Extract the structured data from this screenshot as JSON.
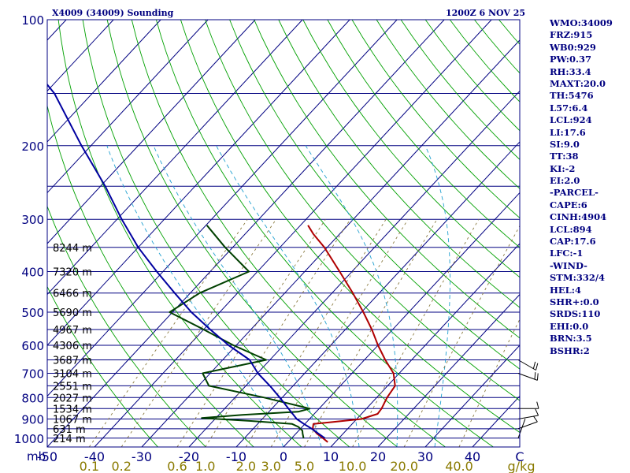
{
  "header": {
    "station": "X4009 (34009) Sounding",
    "time": "1200Z  6 NOV 25"
  },
  "colors": {
    "frame": "#000080",
    "isobar": "#000080",
    "isotherm": "#000080",
    "dry_adiabat": "#00a000",
    "moist_adiabat": "#20a0d0",
    "mixing_ratio": "#8a7a40",
    "temperature": "#b00000",
    "dewpoint": "#004000",
    "parcel": "#0000a0",
    "wind": "#000000"
  },
  "chart_data": {
    "type": "skew-t",
    "title": "X4009 (34009) Sounding",
    "valid_time": "1200Z  6 NOV 25",
    "pressure_axis": {
      "label": "mb",
      "ticks": [
        100,
        200,
        300,
        400,
        500,
        600,
        700,
        800,
        900,
        1000
      ],
      "range": [
        1050,
        100
      ]
    },
    "temperature_axis": {
      "ticks": [
        -50,
        -40,
        -30,
        -20,
        -10,
        0,
        10,
        20,
        30,
        40
      ],
      "tick_labels": [
        "-50",
        "-40",
        "-30",
        "-20",
        "-10",
        "0",
        "10",
        "20",
        "30",
        "40"
      ],
      "unit_label": "C",
      "range_at_1050": [
        -50,
        50
      ]
    },
    "mixing_ratio_axis": {
      "ticks": [
        0.1,
        0.2,
        0.6,
        1.0,
        2.0,
        3.0,
        5.0,
        10.0,
        20.0,
        40.0
      ],
      "tick_labels": [
        "0.1",
        "0.2",
        "0.6",
        "1.0",
        "2.0",
        "3.0",
        "5.0",
        "10.0",
        "20.0",
        "40.0"
      ],
      "unit_label": "g/kg"
    },
    "heights": [
      {
        "p": 1000,
        "label": "214 m"
      },
      {
        "p": 950,
        "label": "631 m"
      },
      {
        "p": 900,
        "label": "1067 m"
      },
      {
        "p": 850,
        "label": "1534 m"
      },
      {
        "p": 800,
        "label": "2027 m"
      },
      {
        "p": 750,
        "label": "2551 m"
      },
      {
        "p": 700,
        "label": "3104 m"
      },
      {
        "p": 650,
        "label": "3687 m"
      },
      {
        "p": 600,
        "label": "4306 m"
      },
      {
        "p": 550,
        "label": "4967 m"
      },
      {
        "p": 500,
        "label": "5690 m"
      },
      {
        "p": 450,
        "label": "6466 m"
      },
      {
        "p": 400,
        "label": "7320 m"
      },
      {
        "p": 350,
        "label": "8244 m"
      }
    ],
    "series": [
      {
        "name": "Temperature",
        "key": "temperature",
        "points": [
          [
            1022,
            8.4
          ],
          [
            1000,
            6.6
          ],
          [
            975,
            4.4
          ],
          [
            950,
            2.6
          ],
          [
            925,
            1.8
          ],
          [
            915,
            5.6
          ],
          [
            900,
            11.0
          ],
          [
            875,
            13.4
          ],
          [
            850,
            13.2
          ],
          [
            800,
            12.2
          ],
          [
            750,
            11.6
          ],
          [
            700,
            8.8
          ],
          [
            650,
            4.4
          ],
          [
            600,
            0.0
          ],
          [
            550,
            -4.4
          ],
          [
            500,
            -9.6
          ],
          [
            450,
            -15.6
          ],
          [
            400,
            -22.6
          ],
          [
            350,
            -30.6
          ],
          [
            325,
            -35.6
          ],
          [
            310,
            -38.4
          ]
        ]
      },
      {
        "name": "Dew point",
        "key": "dewpoint",
        "points": [
          [
            1000,
            2.5
          ],
          [
            975,
            1.4
          ],
          [
            960,
            0.8
          ],
          [
            940,
            -0.8
          ],
          [
            925,
            -2.7
          ],
          [
            910,
            -12.0
          ],
          [
            895,
            -23.0
          ],
          [
            880,
            -15.0
          ],
          [
            865,
            -3.8
          ],
          [
            850,
            -2.0
          ],
          [
            800,
            -13.8
          ],
          [
            750,
            -27.8
          ],
          [
            700,
            -31.6
          ],
          [
            650,
            -20.8
          ],
          [
            600,
            -30.6
          ],
          [
            550,
            -40.0
          ],
          [
            500,
            -50.6
          ],
          [
            450,
            -48.0
          ],
          [
            400,
            -41.8
          ],
          [
            350,
            -51.6
          ],
          [
            310,
            -59.8
          ]
        ]
      },
      {
        "name": "Parcel",
        "key": "parcel",
        "points": [
          [
            1000,
            7.0
          ],
          [
            950,
            2.4
          ],
          [
            925,
            -0.2
          ],
          [
            900,
            -2.7
          ],
          [
            850,
            -6.5
          ],
          [
            800,
            -10.5
          ],
          [
            750,
            -14.9
          ],
          [
            700,
            -19.9
          ],
          [
            650,
            -24.3
          ],
          [
            600,
            -31.6
          ],
          [
            550,
            -38.6
          ],
          [
            500,
            -46.0
          ],
          [
            450,
            -53.3
          ],
          [
            400,
            -61.3
          ],
          [
            350,
            -70.0
          ],
          [
            300,
            -79.0
          ],
          [
            250,
            -89.0
          ],
          [
            200,
            -102.0
          ],
          [
            150,
            -118.0
          ],
          [
            120,
            -133.0
          ]
        ]
      }
    ],
    "winds": [
      {
        "p": 1000,
        "dir": 200,
        "spd": 2
      },
      {
        "p": 950,
        "dir": 250,
        "spd": 4
      },
      {
        "p": 900,
        "dir": 260,
        "spd": 5
      },
      {
        "p": 850,
        "dir": 270,
        "spd": 6
      },
      {
        "p": 700,
        "dir": 290,
        "spd": 8
      },
      {
        "p": 650,
        "dir": 300,
        "spd": 8
      }
    ],
    "stats": [
      "WMO:34009",
      "FRZ:915",
      "WB0:929",
      "PW:0.37",
      "RH:33.4",
      "MAXT:20.0",
      "TH:5476",
      "L57:6.4",
      "LCL:924",
      "LI:17.6",
      "SI:9.0",
      "TT:38",
      "KI:-2",
      "EI:2.0",
      "-PARCEL-",
      "CAPE:6",
      "CINH:4904",
      "LCL:894",
      "CAP:17.6",
      "LFC:-1",
      "-WIND-",
      "STM:332/4",
      "HEL:4",
      "SHR+:0.0",
      "SRDS:110",
      "EHI:0.0",
      "BRN:3.5",
      "BSHR:2"
    ]
  }
}
